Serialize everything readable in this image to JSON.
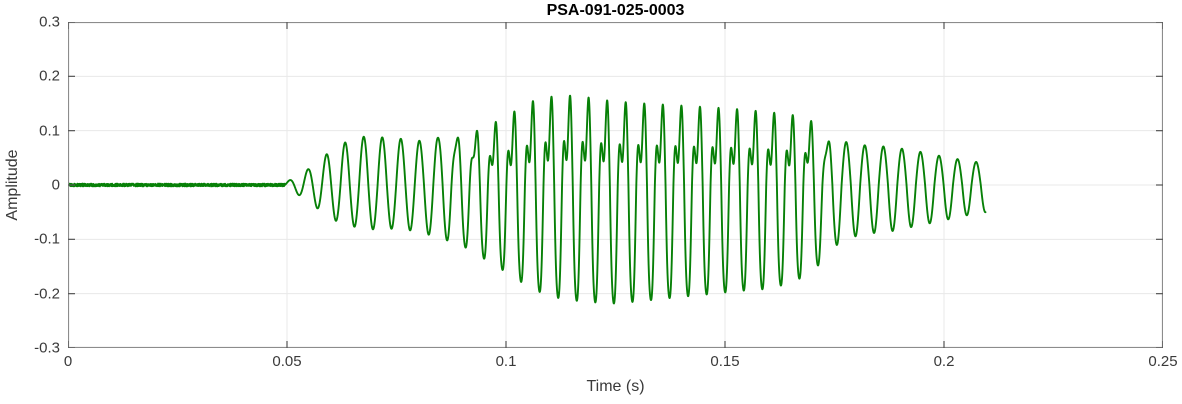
{
  "chart_data": {
    "type": "line",
    "title": "PSA-091-025-0003",
    "xlabel": "Time (s)",
    "ylabel": "Amplitude",
    "xlim": [
      0,
      0.25
    ],
    "ylim": [
      -0.3,
      0.3
    ],
    "xticks": [
      0,
      0.05,
      0.1,
      0.15,
      0.2,
      0.25
    ],
    "xtick_labels": [
      "0",
      "0.05",
      "0.1",
      "0.15",
      "0.2",
      "0.25"
    ],
    "yticks": [
      -0.3,
      -0.2,
      -0.1,
      0,
      0.1,
      0.2,
      0.3
    ],
    "ytick_labels": [
      "-0.3",
      "-0.2",
      "-0.1",
      "0",
      "0.1",
      "0.2",
      "0.3"
    ],
    "grid": true,
    "legend": "none",
    "line_color": "#078007",
    "grid_color": "#e8e8e8",
    "axis_color": "#8c8c8c",
    "tick_color": "#555555",
    "signal": {
      "description": "single green waveform burst: silent near-zero segment, rapid onset at ~0.05 s, loud distorted section peaking +0.22 / -0.28 between 0.10 and 0.17 s, then low-amplitude decaying sinusoidal tail ending at ~0.21 s",
      "carrier_hz": 236,
      "onset_s": 0.0495,
      "end_s": 0.2095,
      "sample_step_s": 4e-05,
      "noise_amp": 0.0025,
      "envelope_pos": [
        [
          0.0495,
          0.004
        ],
        [
          0.052,
          0.015
        ],
        [
          0.055,
          0.03
        ],
        [
          0.058,
          0.05
        ],
        [
          0.062,
          0.075
        ],
        [
          0.068,
          0.09
        ],
        [
          0.076,
          0.085
        ],
        [
          0.082,
          0.08
        ],
        [
          0.087,
          0.1
        ],
        [
          0.092,
          0.125
        ],
        [
          0.097,
          0.15
        ],
        [
          0.102,
          0.18
        ],
        [
          0.107,
          0.21
        ],
        [
          0.113,
          0.22
        ],
        [
          0.118,
          0.215
        ],
        [
          0.124,
          0.205
        ],
        [
          0.13,
          0.2
        ],
        [
          0.138,
          0.195
        ],
        [
          0.146,
          0.19
        ],
        [
          0.153,
          0.185
        ],
        [
          0.16,
          0.178
        ],
        [
          0.166,
          0.17
        ],
        [
          0.17,
          0.155
        ],
        [
          0.1735,
          0.1
        ],
        [
          0.177,
          0.08
        ],
        [
          0.182,
          0.073
        ],
        [
          0.188,
          0.07
        ],
        [
          0.194,
          0.062
        ],
        [
          0.2,
          0.052
        ],
        [
          0.205,
          0.045
        ],
        [
          0.2095,
          0.04
        ]
      ],
      "envelope_neg": [
        [
          0.0495,
          -0.004
        ],
        [
          0.052,
          -0.015
        ],
        [
          0.055,
          -0.03
        ],
        [
          0.058,
          -0.05
        ],
        [
          0.062,
          -0.07
        ],
        [
          0.068,
          -0.082
        ],
        [
          0.076,
          -0.08
        ],
        [
          0.082,
          -0.09
        ],
        [
          0.087,
          -0.11
        ],
        [
          0.092,
          -0.14
        ],
        [
          0.097,
          -0.185
        ],
        [
          0.102,
          -0.22
        ],
        [
          0.107,
          -0.25
        ],
        [
          0.113,
          -0.27
        ],
        [
          0.118,
          -0.275
        ],
        [
          0.124,
          -0.28
        ],
        [
          0.13,
          -0.275
        ],
        [
          0.138,
          -0.266
        ],
        [
          0.146,
          -0.258
        ],
        [
          0.153,
          -0.25
        ],
        [
          0.16,
          -0.245
        ],
        [
          0.166,
          -0.228
        ],
        [
          0.17,
          -0.2
        ],
        [
          0.1735,
          -0.13
        ],
        [
          0.177,
          -0.1
        ],
        [
          0.182,
          -0.09
        ],
        [
          0.188,
          -0.085
        ],
        [
          0.194,
          -0.075
        ],
        [
          0.2,
          -0.065
        ],
        [
          0.205,
          -0.056
        ],
        [
          0.2095,
          -0.05
        ]
      ],
      "harmonic_mix": [
        [
          0.084,
          0
        ],
        [
          0.098,
          1
        ],
        [
          0.168,
          1
        ],
        [
          0.176,
          0
        ]
      ]
    }
  }
}
